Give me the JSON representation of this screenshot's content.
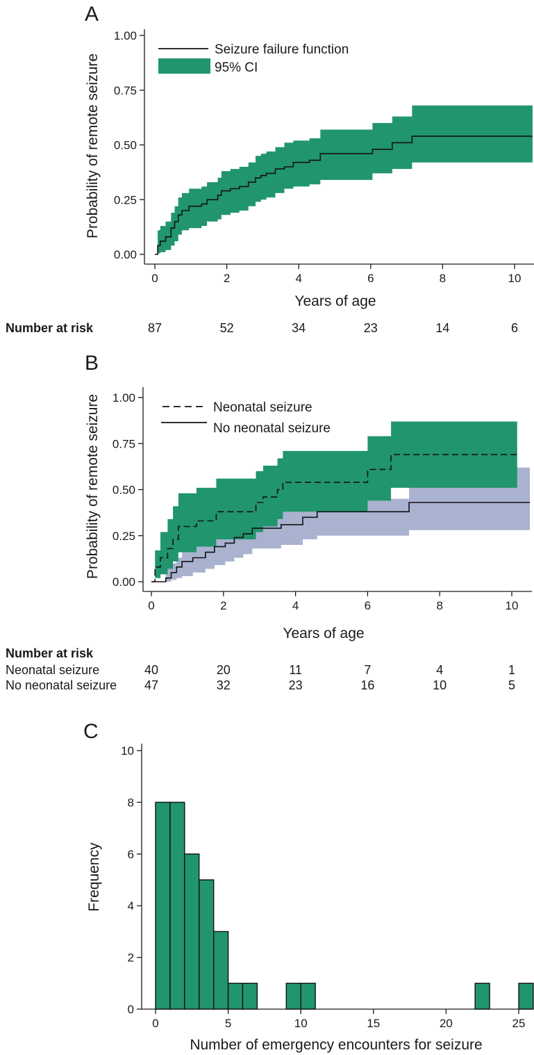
{
  "figure": {
    "background": "#ffffff",
    "colors": {
      "green": "#21956e",
      "lavender": "#a9b2cf",
      "line": "#111111"
    }
  },
  "chart_data": [
    {
      "panel": "A",
      "type": "line",
      "subtype": "kaplan-meier failure curve with confidence band",
      "xlabel": "Years of age",
      "ylabel": "Probability of remote seizure",
      "xlim": [
        -0.3,
        10.5
      ],
      "ylim": [
        0,
        1
      ],
      "xticks": [
        0,
        2,
        4,
        6,
        8,
        10
      ],
      "yticks": [
        0,
        0.25,
        0.5,
        0.75,
        1.0
      ],
      "ytick_labels": [
        "0.00",
        "0.25",
        "0.50",
        "0.75",
        "1.00"
      ],
      "legend": [
        "Seizure failure function",
        "95% CI"
      ],
      "legend_position": "top-left",
      "series": [
        {
          "name": "Seizure failure function",
          "style": "solid",
          "x": [
            0,
            0.08,
            0.15,
            0.3,
            0.45,
            0.55,
            0.65,
            0.75,
            0.95,
            1.3,
            1.45,
            1.75,
            1.85,
            2.1,
            2.35,
            2.6,
            2.8,
            2.95,
            3.1,
            3.35,
            3.6,
            3.85,
            4.3,
            4.6,
            6.05,
            6.6,
            7.15,
            10.5
          ],
          "y": [
            0,
            0.04,
            0.06,
            0.08,
            0.12,
            0.15,
            0.18,
            0.2,
            0.22,
            0.23,
            0.25,
            0.27,
            0.29,
            0.3,
            0.31,
            0.33,
            0.35,
            0.36,
            0.37,
            0.39,
            0.4,
            0.42,
            0.43,
            0.46,
            0.48,
            0.51,
            0.54,
            0.54
          ],
          "ci_lower": [
            0,
            0.005,
            0.01,
            0.02,
            0.04,
            0.06,
            0.09,
            0.11,
            0.12,
            0.13,
            0.15,
            0.16,
            0.18,
            0.19,
            0.2,
            0.22,
            0.24,
            0.25,
            0.26,
            0.28,
            0.3,
            0.31,
            0.32,
            0.34,
            0.37,
            0.39,
            0.42,
            0.42
          ],
          "ci_upper": [
            0,
            0.11,
            0.13,
            0.15,
            0.19,
            0.22,
            0.26,
            0.28,
            0.3,
            0.31,
            0.33,
            0.35,
            0.38,
            0.39,
            0.4,
            0.42,
            0.45,
            0.46,
            0.47,
            0.49,
            0.51,
            0.52,
            0.53,
            0.57,
            0.6,
            0.63,
            0.68,
            0.68
          ]
        }
      ],
      "risk_table": {
        "header": "Number at risk",
        "rows": [
          {
            "label": "",
            "values": [
              "87",
              "52",
              "34",
              "23",
              "14",
              "6"
            ]
          }
        ]
      }
    },
    {
      "panel": "B",
      "type": "line",
      "subtype": "kaplan-meier failure curves with confidence bands",
      "xlabel": "Years of age",
      "ylabel": "Probability of remote seizure",
      "xlim": [
        -0.3,
        10.5
      ],
      "ylim": [
        0,
        1
      ],
      "xticks": [
        0,
        2,
        4,
        6,
        8,
        10
      ],
      "yticks": [
        0,
        0.25,
        0.5,
        0.75,
        1.0
      ],
      "ytick_labels": [
        "0.00",
        "0.25",
        "0.50",
        "0.75",
        "1.00"
      ],
      "legend": [
        "Neonatal seizure",
        "No neonatal seizure"
      ],
      "legend_position": "top-left",
      "series": [
        {
          "name": "No neonatal seizure",
          "style": "solid",
          "band_color": "#a9b2cf",
          "x": [
            0,
            0.4,
            0.55,
            0.7,
            0.85,
            1.15,
            1.5,
            1.75,
            2.05,
            2.3,
            2.55,
            2.8,
            3.6,
            4.2,
            4.6,
            7.15,
            10.5
          ],
          "y": [
            0,
            0.02,
            0.05,
            0.08,
            0.11,
            0.13,
            0.16,
            0.19,
            0.21,
            0.24,
            0.26,
            0.29,
            0.31,
            0.35,
            0.38,
            0.43,
            0.43
          ],
          "ci_lower": [
            0,
            0,
            0.01,
            0.02,
            0.03,
            0.05,
            0.07,
            0.09,
            0.11,
            0.13,
            0.15,
            0.18,
            0.2,
            0.23,
            0.25,
            0.28,
            0.28
          ],
          "ci_upper": [
            0,
            0.07,
            0.1,
            0.13,
            0.16,
            0.19,
            0.23,
            0.26,
            0.28,
            0.31,
            0.33,
            0.36,
            0.39,
            0.42,
            0.45,
            0.62,
            0.62
          ]
        },
        {
          "name": "Neonatal seizure",
          "style": "dashed",
          "band_color": "#21956e",
          "x": [
            0,
            0.1,
            0.25,
            0.45,
            0.6,
            0.75,
            1.25,
            1.8,
            2.9,
            3.1,
            3.5,
            3.65,
            6.0,
            6.65,
            10.15
          ],
          "y": [
            0,
            0.08,
            0.13,
            0.18,
            0.23,
            0.3,
            0.33,
            0.38,
            0.43,
            0.46,
            0.5,
            0.54,
            0.61,
            0.69,
            0.69
          ],
          "ci_lower": [
            0,
            0.02,
            0.04,
            0.07,
            0.11,
            0.16,
            0.19,
            0.23,
            0.27,
            0.3,
            0.34,
            0.38,
            0.44,
            0.51,
            0.51
          ],
          "ci_upper": [
            0,
            0.17,
            0.27,
            0.34,
            0.41,
            0.48,
            0.51,
            0.56,
            0.6,
            0.63,
            0.67,
            0.71,
            0.79,
            0.87,
            0.87
          ]
        }
      ],
      "risk_table": {
        "header": "Number at risk",
        "rows": [
          {
            "label": "Neonatal seizure",
            "values": [
              "40",
              "20",
              "11",
              "7",
              "4",
              "1"
            ]
          },
          {
            "label": "No neonatal seizure",
            "values": [
              "47",
              "32",
              "23",
              "16",
              "10",
              "5"
            ]
          }
        ]
      }
    },
    {
      "panel": "C",
      "type": "bar",
      "subtype": "histogram",
      "xlabel": "Number of emergency encounters for seizure",
      "ylabel": "Frequency",
      "xlim": [
        -0.5,
        26.5
      ],
      "ylim": [
        0,
        10
      ],
      "xticks": [
        0,
        5,
        10,
        15,
        20,
        25
      ],
      "yticks": [
        0,
        2,
        4,
        6,
        8,
        10
      ],
      "bin_width": 1,
      "bins": [
        0,
        1,
        2,
        3,
        4,
        5,
        6,
        9,
        10,
        22,
        25
      ],
      "values": [
        8,
        8,
        6,
        5,
        3,
        1,
        1,
        1,
        1,
        1,
        1
      ]
    }
  ]
}
